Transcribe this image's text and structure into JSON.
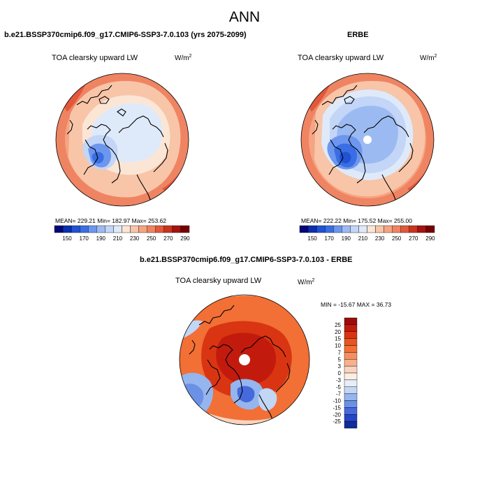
{
  "main_title": "ANN",
  "panels": [
    {
      "title": "b.e21.BSSP370cmip6.f09_g17.CMIP6-SSP3-7.0.103 (yrs 2075-2099)",
      "variable": "TOA clearsky upward LW",
      "units": "W/m",
      "units_exp": "2",
      "stats": "MEAN= 229.21   Min= 182.97   Max= 253.62"
    },
    {
      "title": "ERBE",
      "variable": "TOA clearsky upward LW",
      "units": "W/m",
      "units_exp": "2",
      "stats": "MEAN= 222.22   Min= 175.52   Max= 255.00"
    },
    {
      "title": "b.e21.BSSP370cmip6.f09_g17.CMIP6-SSP3-7.0.103 - ERBE",
      "variable": "TOA clearsky upward LW",
      "units": "W/m",
      "units_exp": "2",
      "stats": "MIN = -15.67 MAX =  36.73"
    }
  ],
  "chart_data": [
    {
      "type": "heatmap",
      "projection": "north polar stereographic",
      "title": "b.e21.BSSP370cmip6.f09_g17.CMIP6-SSP3-7.0.103 (yrs 2075-2099)",
      "units": "W/m2",
      "mean": 229.21,
      "min": 182.97,
      "max": 253.62,
      "colorbar": {
        "orientation": "horizontal",
        "ticks": [
          "150",
          "170",
          "190",
          "210",
          "230",
          "250",
          "270",
          "290"
        ],
        "colors": [
          "#05057a",
          "#0a2fb0",
          "#2152d4",
          "#3a6ee4",
          "#6d96ef",
          "#9cbaf2",
          "#c3d6f7",
          "#deeafa",
          "#fbe6d6",
          "#f8c5a8",
          "#f5a583",
          "#ef8463",
          "#e2583b",
          "#c93420",
          "#a51410",
          "#780000"
        ]
      }
    },
    {
      "type": "heatmap",
      "projection": "north polar stereographic",
      "title": "ERBE",
      "units": "W/m2",
      "mean": 222.22,
      "min": 175.52,
      "max": 255.0,
      "colorbar": {
        "orientation": "horizontal",
        "ticks": [
          "150",
          "170",
          "190",
          "210",
          "230",
          "250",
          "270",
          "290"
        ],
        "colors": [
          "#05057a",
          "#0a2fb0",
          "#2152d4",
          "#3a6ee4",
          "#6d96ef",
          "#9cbaf2",
          "#c3d6f7",
          "#deeafa",
          "#fbe6d6",
          "#f8c5a8",
          "#f5a583",
          "#ef8463",
          "#e2583b",
          "#c93420",
          "#a51410",
          "#780000"
        ]
      }
    },
    {
      "type": "heatmap",
      "projection": "north polar stereographic",
      "title": "b.e21.BSSP370cmip6.f09_g17.CMIP6-SSP3-7.0.103 - ERBE",
      "units": "W/m2",
      "min": -15.67,
      "max": 36.73,
      "colorbar": {
        "orientation": "vertical",
        "ticks": [
          "25",
          "20",
          "15",
          "10",
          "7",
          "5",
          "3",
          "0",
          "-3",
          "-5",
          "-7",
          "-10",
          "-15",
          "-20",
          "-25"
        ],
        "colors": [
          "#9c0c0c",
          "#c21b0e",
          "#d93512",
          "#ea5420",
          "#f26f35",
          "#f58f5e",
          "#f8b08d",
          "#fad4bf",
          "#fdeee4",
          "#e6eefa",
          "#c2d6f5",
          "#95b5ee",
          "#6b91e6",
          "#4669dc",
          "#2646c6",
          "#102b9a"
        ]
      }
    }
  ]
}
